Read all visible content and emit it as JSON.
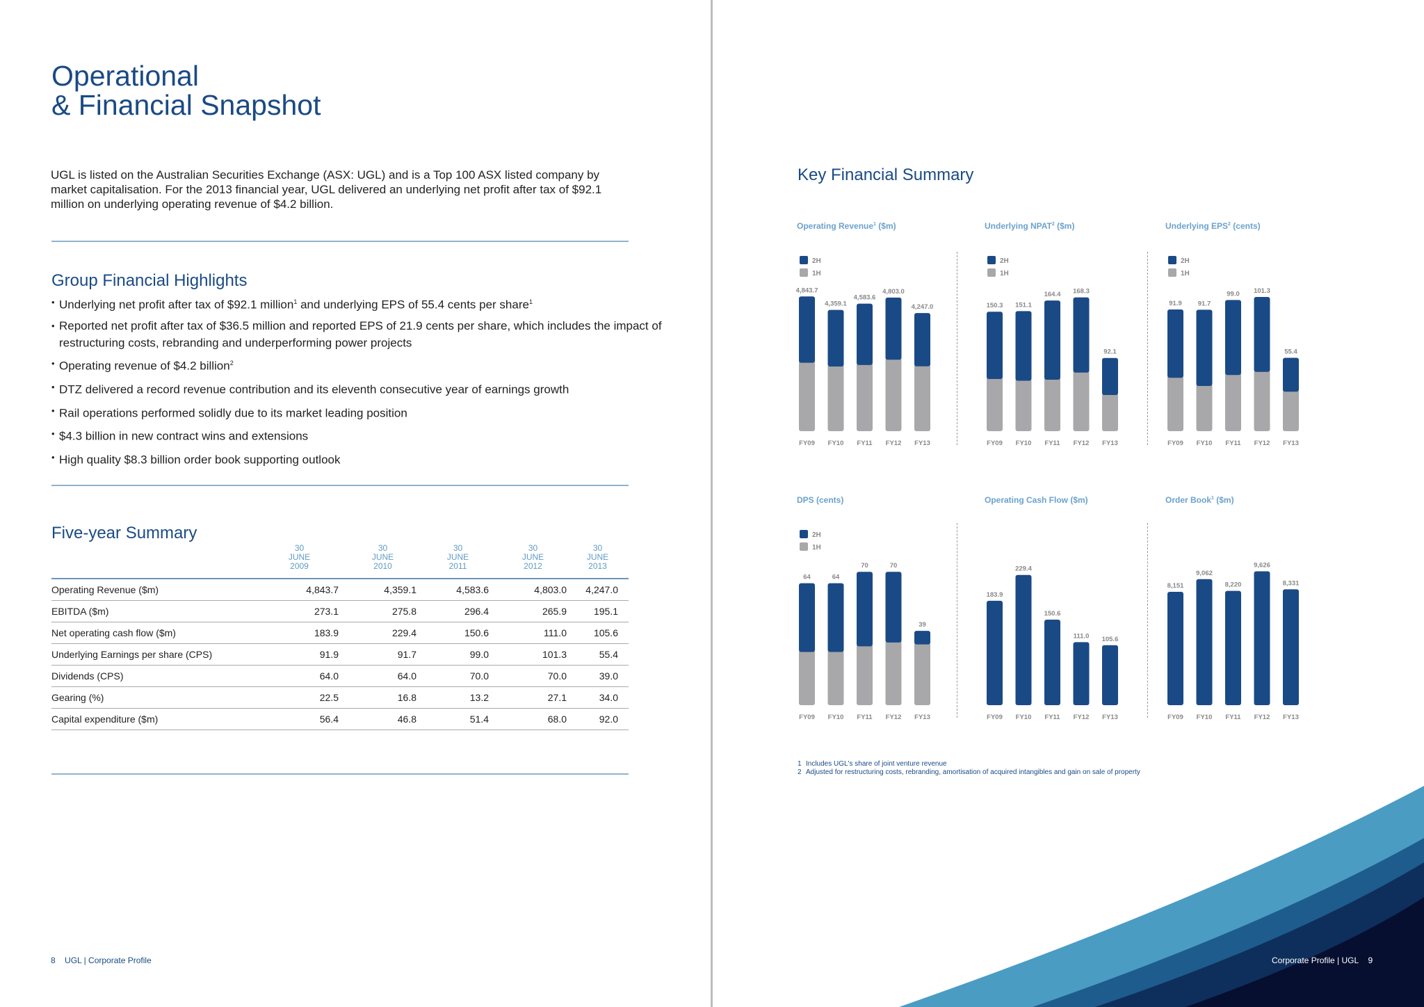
{
  "left": {
    "title_line1": "Operational",
    "title_line2": "& Financial Snapshot",
    "intro": "UGL is listed on the Australian Securities Exchange (ASX: UGL) and is a Top 100 ASX listed company by market capitalisation. For the 2013 financial year, UGL delivered an underlying net profit after tax of $92.1 million on underlying operating revenue of $4.2 billion.",
    "highlights_title": "Group Financial Highlights",
    "highlights": [
      {
        "text": "Underlying net profit after tax of $92.1 million",
        "sup": "1",
        "text2": " and underlying EPS of 55.4 cents per share",
        "sup2": "1"
      },
      {
        "text": "Reported net profit after tax of $36.5 million and reported EPS of 21.9 cents per share, which includes the impact of restructuring costs, rebranding and underperforming power projects",
        "sup": "",
        "text2": "",
        "sup2": ""
      },
      {
        "text": "Operating revenue of $4.2 billion",
        "sup": "2",
        "text2": "",
        "sup2": ""
      },
      {
        "text": "DTZ delivered a record revenue contribution and its eleventh consecutive year of earnings growth",
        "sup": "",
        "text2": "",
        "sup2": ""
      },
      {
        "text": "Rail operations performed solidly due to its market leading position",
        "sup": "",
        "text2": "",
        "sup2": ""
      },
      {
        "text": "$4.3 billion in new contract wins and extensions",
        "sup": "",
        "text2": "",
        "sup2": ""
      },
      {
        "text": "High quality $8.3 billion order book supporting outlook",
        "sup": "",
        "text2": "",
        "sup2": ""
      }
    ],
    "summary_title": "Five-year Summary",
    "summary_columns": [
      {
        "day": "30",
        "month": "JUNE",
        "year": "2009"
      },
      {
        "day": "30",
        "month": "JUNE",
        "year": "2010"
      },
      {
        "day": "30",
        "month": "JUNE",
        "year": "2011"
      },
      {
        "day": "30",
        "month": "JUNE",
        "year": "2012"
      },
      {
        "day": "30",
        "month": "JUNE",
        "year": "2013"
      }
    ],
    "summary_rows": [
      {
        "label": "Operating Revenue ($m)",
        "values": [
          "4,843.7",
          "4,359.1",
          "4,583.6",
          "4,803.0",
          "4,247.0"
        ]
      },
      {
        "label": "EBITDA ($m)",
        "values": [
          "273.1",
          "275.8",
          "296.4",
          "265.9",
          "195.1"
        ]
      },
      {
        "label": "Net operating cash flow ($m)",
        "values": [
          "183.9",
          "229.4",
          "150.6",
          "111.0",
          "105.6"
        ]
      },
      {
        "label": "Underlying Earnings per share (CPS)",
        "values": [
          "91.9",
          "91.7",
          "99.0",
          "101.3",
          "55.4"
        ]
      },
      {
        "label": "Dividends (CPS)",
        "values": [
          "64.0",
          "64.0",
          "70.0",
          "70.0",
          "39.0"
        ]
      },
      {
        "label": "Gearing (%)",
        "values": [
          "22.5",
          "16.8",
          "13.2",
          "27.1",
          "34.0"
        ]
      },
      {
        "label": "Capital expenditure ($m)",
        "values": [
          "56.4",
          "46.8",
          "51.4",
          "68.0",
          "92.0"
        ]
      }
    ],
    "footer_page": "8",
    "footer_text": "UGL | Corporate Profile"
  },
  "right": {
    "title": "Key Financial Summary",
    "footnotes": [
      {
        "num": "1",
        "text": "Includes UGL's share of joint venture revenue"
      },
      {
        "num": "2",
        "text": "Adjusted for restructuring costs, rebranding, amortisation of acquired intangibles and gain on sale of property"
      }
    ],
    "footer_text": "Corporate Profile | UGL",
    "footer_page": "9"
  },
  "colors": {
    "navy": "#1a4a85",
    "grey": "#a8a8aa",
    "light_blue": "#6aa2cd"
  },
  "chart_data": [
    {
      "type": "bar",
      "stacked": true,
      "title": "Operating Revenue",
      "title_sup": "1",
      "title_suffix": " ($m)",
      "categories": [
        "FY09",
        "FY10",
        "FY11",
        "FY12",
        "FY13"
      ],
      "series": [
        {
          "name": "2H",
          "color": "#1a4a85",
          "values": [
            2310,
            1960,
            2130,
            2160,
            1840
          ]
        },
        {
          "name": "1H",
          "color": "#a8a8aa",
          "values": [
            2533.7,
            2399.1,
            2453.6,
            2643,
            2407
          ]
        }
      ],
      "labels": [
        "4,843.7",
        "4,359.1",
        "4,583.6",
        "4,803.0",
        "4,247.0"
      ],
      "ylim": [
        0,
        5000
      ],
      "legend": "top-left"
    },
    {
      "type": "bar",
      "stacked": true,
      "title": "Underlying NPAT",
      "title_sup": "2",
      "title_suffix": " ($m)",
      "categories": [
        "FY09",
        "FY10",
        "FY11",
        "FY12",
        "FY13"
      ],
      "series": [
        {
          "name": "2H",
          "color": "#1a4a85",
          "values": [
            82,
            85,
            97,
            92,
            44
          ]
        },
        {
          "name": "1H",
          "color": "#a8a8aa",
          "values": [
            68.3,
            66.1,
            67.4,
            76.3,
            48.1
          ]
        }
      ],
      "labels": [
        "150.3",
        "151.1",
        "164.4",
        "168.3",
        "92.1"
      ],
      "ylim": [
        0,
        175
      ],
      "legend": "top-left"
    },
    {
      "type": "bar",
      "stacked": true,
      "title": "Underlying EPS",
      "title_sup": "2",
      "title_suffix": " (cents)",
      "categories": [
        "FY09",
        "FY10",
        "FY11",
        "FY12",
        "FY13"
      ],
      "series": [
        {
          "name": "2H",
          "color": "#1a4a85",
          "values": [
            50,
            56,
            55,
            55,
            24
          ]
        },
        {
          "name": "1H",
          "color": "#a8a8aa",
          "values": [
            41.9,
            35.7,
            44,
            46.3,
            31.4
          ]
        }
      ],
      "labels": [
        "91.9",
        "91.7",
        "99.0",
        "101.3",
        "55.4"
      ],
      "ylim": [
        0,
        105
      ],
      "legend": "top-left"
    },
    {
      "type": "bar",
      "stacked": true,
      "title": "DPS (cents)",
      "title_sup": "",
      "title_suffix": "",
      "categories": [
        "FY09",
        "FY10",
        "FY11",
        "FY12",
        "FY13"
      ],
      "series": [
        {
          "name": "2H",
          "color": "#1a4a85",
          "values": [
            35,
            35,
            38,
            36,
            6
          ]
        },
        {
          "name": "1H",
          "color": "#a8a8aa",
          "values": [
            29,
            29,
            32,
            34,
            33
          ]
        }
      ],
      "labels": [
        "64",
        "64",
        "70",
        "70",
        "39"
      ],
      "ylim": [
        0,
        73
      ],
      "legend": "top-left"
    },
    {
      "type": "bar",
      "stacked": false,
      "title": "Operating Cash Flow ($m)",
      "title_sup": "",
      "title_suffix": "",
      "categories": [
        "FY09",
        "FY10",
        "FY11",
        "FY12",
        "FY13"
      ],
      "series": [
        {
          "name": "",
          "color": "#1a4a85",
          "values": [
            183.9,
            229.4,
            150.6,
            111.0,
            105.6
          ]
        }
      ],
      "labels": [
        "183.9",
        "229.4",
        "150.6",
        "111.0",
        "105.6"
      ],
      "ylim": [
        0,
        245
      ],
      "legend": "none"
    },
    {
      "type": "bar",
      "stacked": false,
      "title": "Order Book",
      "title_sup": "1",
      "title_suffix": " ($m)",
      "categories": [
        "FY09",
        "FY10",
        "FY11",
        "FY12",
        "FY13"
      ],
      "series": [
        {
          "name": "",
          "color": "#1a4a85",
          "values": [
            8151,
            9062,
            8220,
            9626,
            8331
          ]
        }
      ],
      "labels": [
        "8,151",
        "9,062",
        "8,220",
        "9,626",
        "8,331"
      ],
      "ylim": [
        0,
        10000
      ],
      "legend": "none"
    }
  ]
}
